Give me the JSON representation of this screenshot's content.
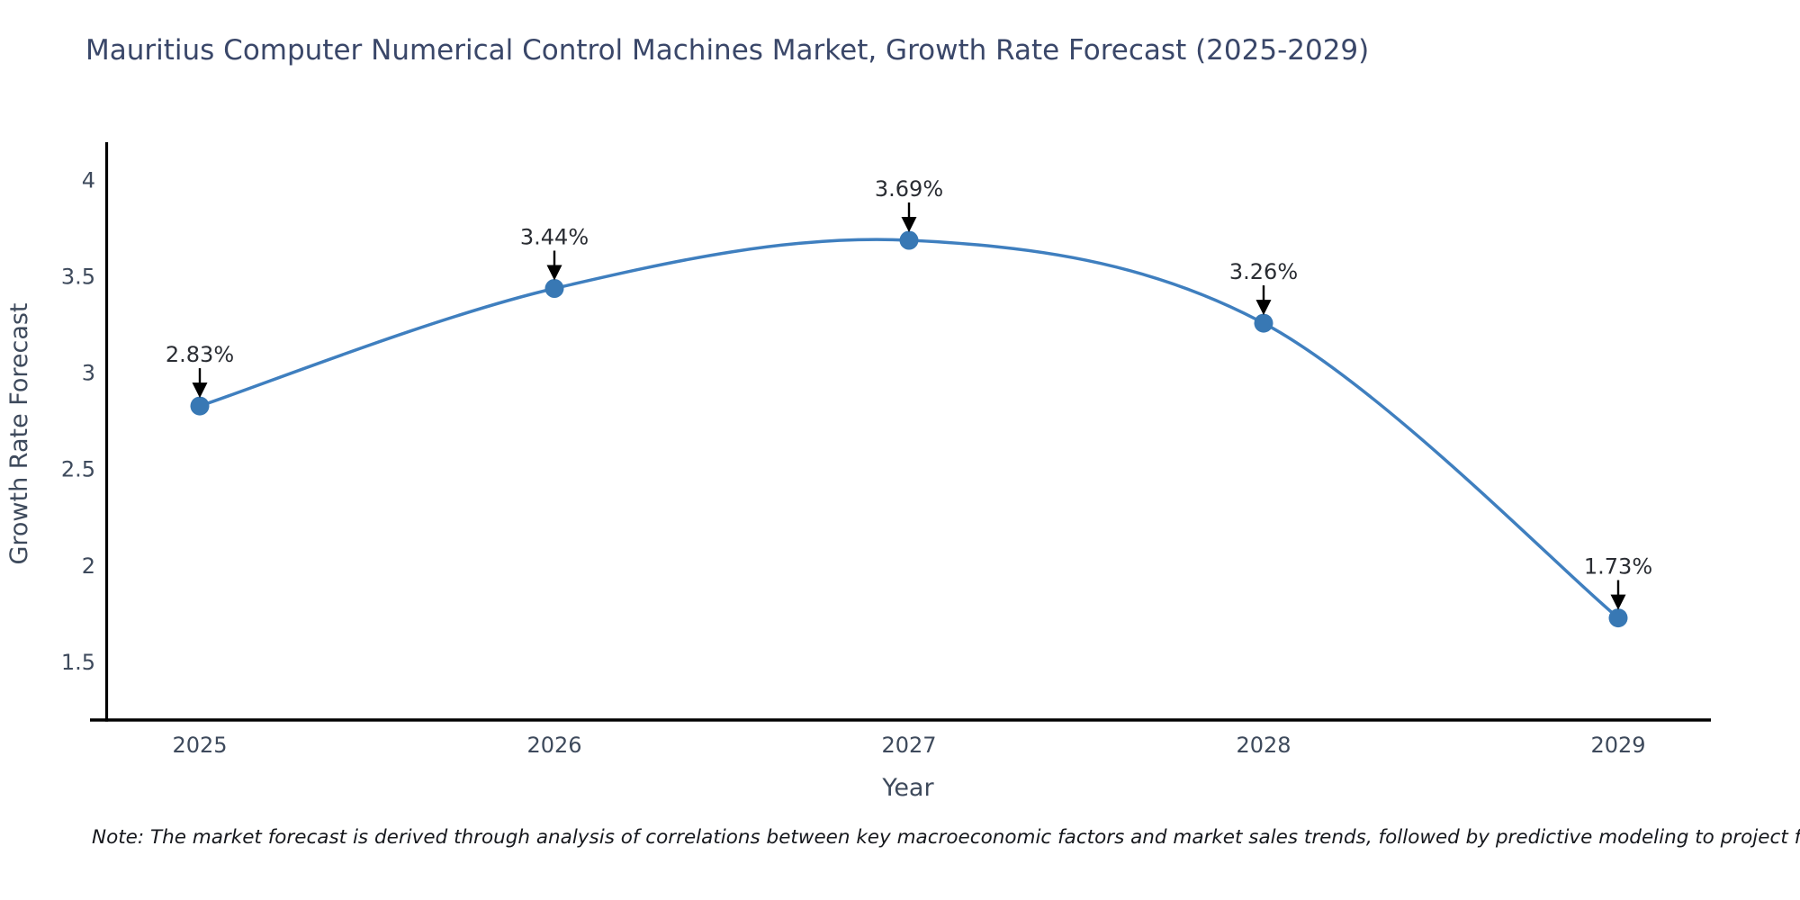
{
  "title": "Mauritius Computer Numerical Control Machines Market, Growth Rate Forecast (2025-2029)",
  "note": "Note: The market forecast is derived through analysis of correlations between key macroeconomic factors and market sales trends, followed by predictive modeling to project future sales",
  "chart_data": {
    "type": "line",
    "title": "Mauritius Computer Numerical Control Machines Market, Growth Rate Forecast (2025-2029)",
    "xlabel": "Year",
    "ylabel": "Growth Rate Forecast",
    "categories": [
      "2025",
      "2026",
      "2027",
      "2028",
      "2029"
    ],
    "values": [
      2.83,
      3.44,
      3.69,
      3.26,
      1.73
    ],
    "point_labels": [
      "2.83%",
      "3.44%",
      "3.69%",
      "3.26%",
      "1.73%"
    ],
    "ylim": [
      1.2,
      4.19
    ],
    "yticks": [
      4,
      3.5,
      3,
      2.5,
      2,
      1.5
    ],
    "grid": false,
    "legend": "none",
    "line_shape": "spline",
    "line_color": "#3f7fbf",
    "marker_color": "#3878b4",
    "annotation_color": "#2a2d33",
    "arrow_color": "#000000",
    "spine_color": "#000000"
  }
}
